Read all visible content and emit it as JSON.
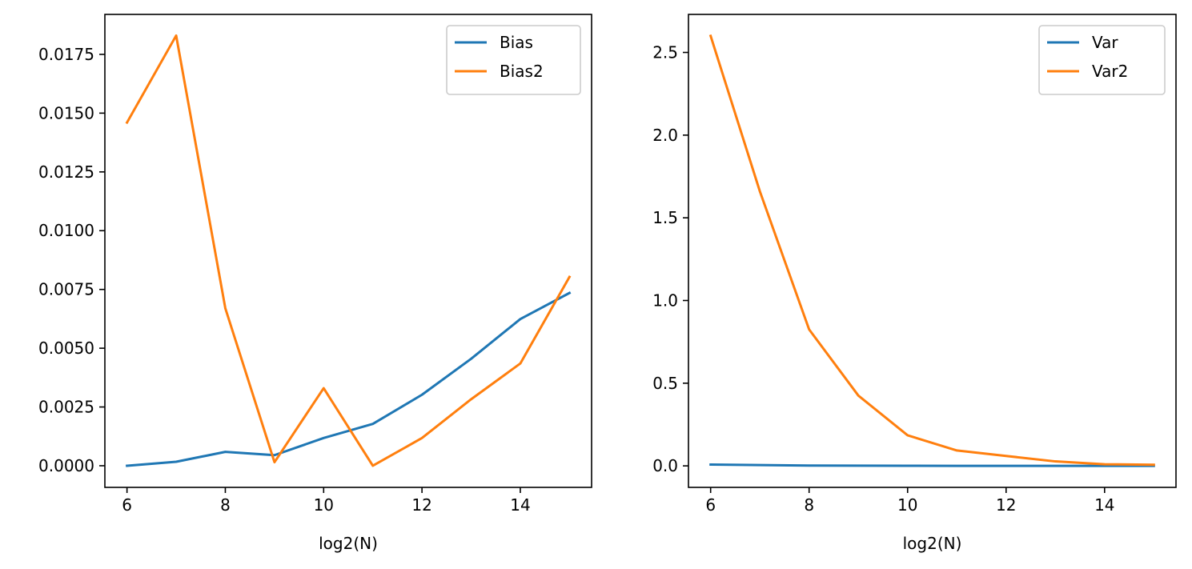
{
  "chart_data": [
    {
      "type": "line",
      "xlabel": "log2(N)",
      "ylabel": "",
      "xlim": [
        5.55,
        15.45
      ],
      "ylim": [
        -0.00092,
        0.0192
      ],
      "xticks": [
        6,
        8,
        10,
        12,
        14
      ],
      "xtick_labels": [
        "6",
        "8",
        "10",
        "12",
        "14"
      ],
      "yticks": [
        0,
        0.0025,
        0.005,
        0.0075,
        0.01,
        0.0125,
        0.015,
        0.0175
      ],
      "ytick_labels": [
        "0.0000",
        "0.0025",
        "0.0050",
        "0.0075",
        "0.0100",
        "0.0125",
        "0.0150",
        "0.0175"
      ],
      "grid": false,
      "legend": "upper right",
      "x": [
        6,
        7,
        8,
        9,
        10,
        11,
        12,
        13,
        14,
        15
      ],
      "series": [
        {
          "name": "Bias",
          "color": "#1f77b4",
          "values": [
            0.0,
            0.00017,
            0.00059,
            0.00045,
            0.00118,
            0.00178,
            0.00302,
            0.00455,
            0.00624,
            0.00735
          ]
        },
        {
          "name": "Bias2",
          "color": "#ff7f0e",
          "values": [
            0.0146,
            0.0183,
            0.0067,
            0.00015,
            0.0033,
            0.0,
            0.00118,
            0.00283,
            0.00435,
            0.00803
          ]
        }
      ]
    },
    {
      "type": "line",
      "xlabel": "log2(N)",
      "ylabel": "",
      "xlim": [
        5.55,
        15.45
      ],
      "ylim": [
        -0.13,
        2.73
      ],
      "xticks": [
        6,
        8,
        10,
        12,
        14
      ],
      "xtick_labels": [
        "6",
        "8",
        "10",
        "12",
        "14"
      ],
      "yticks": [
        0,
        0.5,
        1,
        1.5,
        2,
        2.5
      ],
      "ytick_labels": [
        "0.0",
        "0.5",
        "1.0",
        "1.5",
        "2.0",
        "2.5"
      ],
      "grid": false,
      "legend": "upper right",
      "x": [
        6,
        7,
        8,
        9,
        10,
        11,
        12,
        13,
        14,
        15
      ],
      "series": [
        {
          "name": "Var",
          "color": "#1f77b4",
          "values": [
            0.008,
            0.005,
            0.002,
            0.001,
            0.0005,
            0.0003,
            0.0002,
            0.0001,
            0.0001,
            0.0
          ]
        },
        {
          "name": "Var2",
          "color": "#ff7f0e",
          "values": [
            2.6,
            1.66,
            0.825,
            0.425,
            0.185,
            0.093,
            0.06,
            0.027,
            0.01,
            0.007
          ]
        }
      ]
    }
  ]
}
